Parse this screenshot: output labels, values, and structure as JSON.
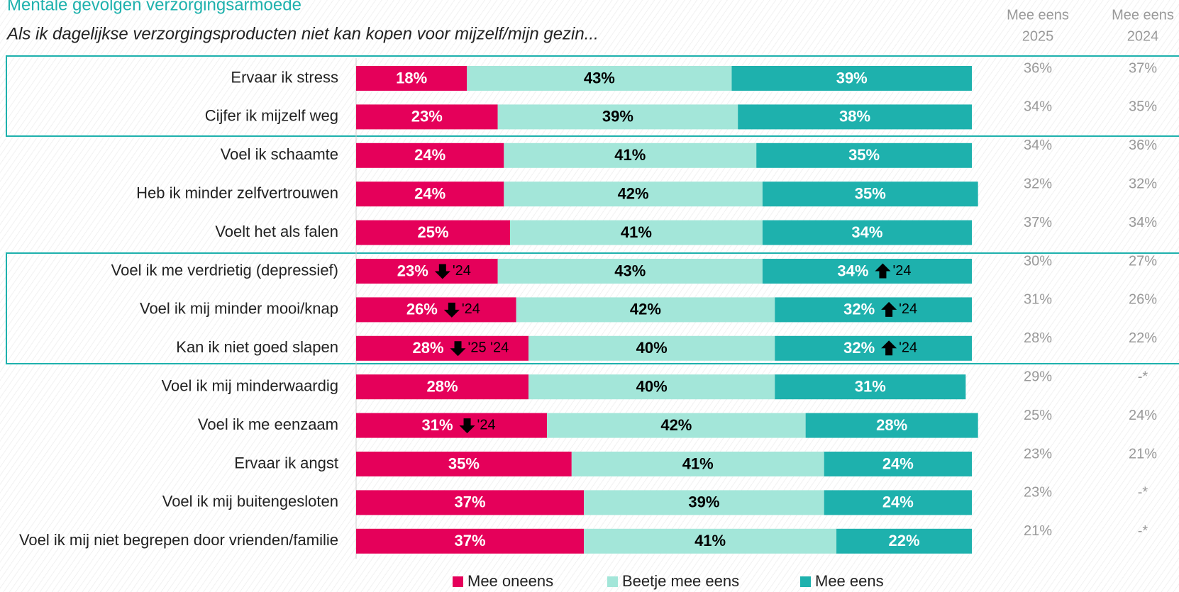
{
  "chart_data": {
    "type": "stacked-bar-horizontal",
    "title": "Mentale gevolgen verzorgingsarmoede",
    "subtitle": "Als ik dagelijkse verzorgingsproducten niet kan kopen voor mijzelf/mijn gezin...",
    "categories": [
      "Ervaar ik stress",
      "Cijfer ik mijzelf weg",
      "Voel ik schaamte",
      "Heb ik minder zelfvertrouwen",
      "Voelt het als falen",
      "Voel ik me verdrietig (depressief)",
      "Voel ik mij minder mooi/knap",
      "Kan ik niet goed slapen",
      "Voel ik mij minderwaardig",
      "Voel ik me eenzaam",
      "Ervaar ik angst",
      "Voel ik mij buitengesloten",
      "Voel ik mij niet begrepen door vrienden/familie"
    ],
    "xlim": [
      0,
      100
    ],
    "series": [
      {
        "name": "Mee oneens",
        "color": "#e5005a",
        "label_color": "#ffffff",
        "arrow": "down",
        "values": [
          18,
          23,
          24,
          24,
          25,
          23,
          26,
          28,
          28,
          31,
          35,
          37,
          37
        ],
        "value_labels": [
          "18%",
          "23%",
          "24%",
          "24%",
          "25%",
          "23%",
          "26%",
          "28%",
          "28%",
          "31%",
          "35%",
          "37%",
          "37%"
        ],
        "annotations": [
          null,
          null,
          null,
          null,
          null,
          "'24",
          "'24",
          "'25 '24",
          null,
          "'24",
          null,
          null,
          null
        ]
      },
      {
        "name": "Beetje mee eens",
        "color": "#a3e6d9",
        "label_color": "#000000",
        "values": [
          43,
          39,
          41,
          42,
          41,
          43,
          42,
          40,
          40,
          42,
          41,
          39,
          41
        ],
        "value_labels": [
          "43%",
          "39%",
          "41%",
          "42%",
          "41%",
          "43%",
          "42%",
          "40%",
          "40%",
          "42%",
          "41%",
          "39%",
          "41%"
        ]
      },
      {
        "name": "Mee eens",
        "color": "#1eb1ad",
        "label_color": "#ffffff",
        "arrow": "up",
        "values": [
          39,
          38,
          35,
          35,
          34,
          34,
          32,
          32,
          31,
          28,
          24,
          24,
          22
        ],
        "value_labels": [
          "39%",
          "38%",
          "35%",
          "35%",
          "34%",
          "34%",
          "32%",
          "32%",
          "31%",
          "28%",
          "24%",
          "24%",
          "22%"
        ],
        "annotations": [
          null,
          null,
          null,
          null,
          null,
          "'24",
          "'24",
          "'24",
          null,
          null,
          null,
          null,
          null
        ]
      }
    ],
    "columns": [
      {
        "header": [
          "Mee eens",
          "2025"
        ],
        "values": [
          "36%",
          "34%",
          "34%",
          "32%",
          "37%",
          "30%",
          "31%",
          "28%",
          "29%",
          "25%",
          "23%",
          "23%",
          "21%"
        ]
      },
      {
        "header": [
          "Mee eens",
          "2024"
        ],
        "values": [
          "37%",
          "35%",
          "36%",
          "32%",
          "34%",
          "27%",
          "26%",
          "22%",
          "-*",
          "24%",
          "21%",
          "-*",
          "-*"
        ]
      }
    ]
  }
}
